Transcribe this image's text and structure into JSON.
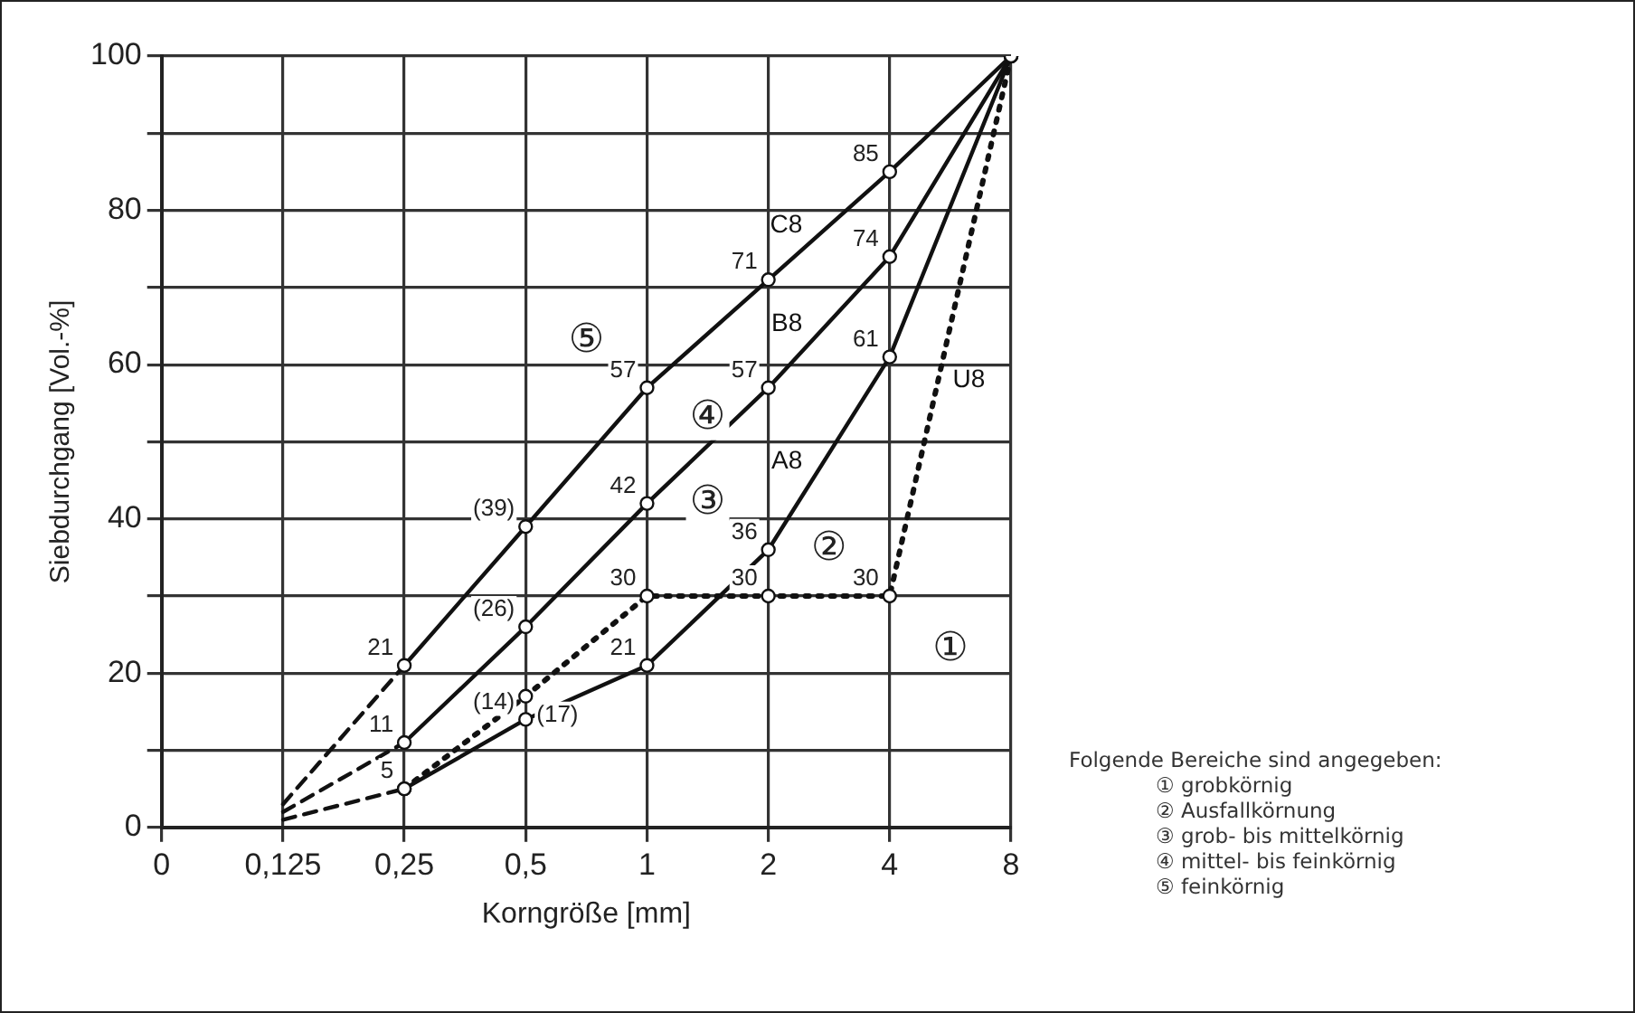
{
  "chart_data": {
    "type": "line",
    "xlabel": "Korngröße [mm]",
    "ylabel": "Siebdurchgang [Vol.-%]",
    "categories": [
      "0",
      "0,125",
      "0,25",
      "0,5",
      "1",
      "2",
      "4",
      "8"
    ],
    "ylim": [
      0,
      100
    ],
    "yticks": [
      0,
      {
        "value": 10,
        "label": null
      },
      20,
      {
        "value": 30,
        "label": null
      },
      40,
      {
        "value": 50,
        "label": null
      },
      60,
      {
        "value": 70,
        "label": null
      },
      80,
      {
        "value": 90,
        "label": null
      },
      100
    ],
    "grid": true,
    "legend": false,
    "line_style": "solid",
    "series": [
      {
        "name": "C8",
        "color": "#111111",
        "marker": "circle",
        "values": [
          null,
          null,
          21,
          39,
          57,
          71,
          85,
          100
        ],
        "value_labels": [
          null,
          null,
          "21",
          "(39)",
          "57",
          "71",
          "85",
          null
        ]
      },
      {
        "name": "B8",
        "color": "#111111",
        "marker": "circle",
        "values": [
          null,
          null,
          11,
          26,
          42,
          57,
          74,
          100
        ],
        "value_labels": [
          null,
          null,
          "11",
          "(26)",
          "42",
          "57",
          "74",
          null
        ]
      },
      {
        "name": "A8",
        "color": "#111111",
        "marker": "circle",
        "values": [
          null,
          null,
          5,
          14,
          21,
          36,
          61,
          100
        ],
        "value_labels": [
          null,
          null,
          "5",
          "(14)",
          "21",
          "36",
          "61",
          null
        ]
      },
      {
        "name": "U8",
        "color": "#111111",
        "marker": "circle",
        "line_style": "dotted",
        "values": [
          null,
          null,
          5,
          17,
          30,
          30,
          30,
          100
        ],
        "value_labels": [
          null,
          null,
          null,
          "(17)",
          "30",
          "30",
          "30",
          null
        ]
      },
      {
        "color": "#111111",
        "line_style": "dashed",
        "values": [
          null,
          3,
          21,
          null,
          null,
          null,
          null,
          null
        ]
      },
      {
        "color": "#111111",
        "line_style": "dashed",
        "values": [
          null,
          2,
          11,
          null,
          null,
          null,
          null,
          null
        ]
      },
      {
        "color": "#111111",
        "line_style": "dashed",
        "values": [
          null,
          1,
          5,
          null,
          null,
          null,
          null,
          null
        ]
      }
    ],
    "annotations": [
      "⑤",
      "④",
      "③",
      "②",
      "①",
      "Folgende Bereiche sind angegeben:",
      "① grobkörnig",
      "② Ausfallkörnung",
      "③ grob- bis mittelkörnig",
      "④ mittel- bis feinkörnig",
      "⑤ feinkörnig"
    ]
  }
}
